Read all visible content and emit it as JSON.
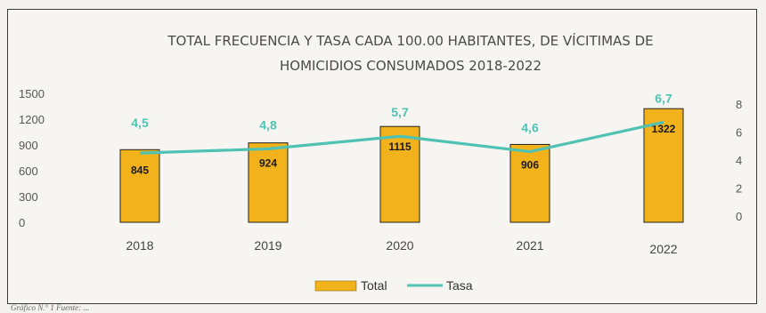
{
  "chart_data": {
    "type": "bar",
    "title_lines": [
      "TOTAL FRECUENCIA Y TASA CADA 100.00 HABITANTES, DE VÍCITIMAS DE",
      "HOMICIDIOS CONSUMADOS 2018-2022"
    ],
    "categories": [
      "2018",
      "2019",
      "2020",
      "2021",
      "2022"
    ],
    "series": [
      {
        "name": "Total",
        "type": "bar",
        "axis": "left",
        "color": "#f2b21b",
        "values": [
          845,
          924,
          1115,
          906,
          1322
        ]
      },
      {
        "name": "Tasa",
        "type": "line",
        "axis": "right",
        "color": "#4fc2b3",
        "values": [
          4.5,
          4.8,
          5.7,
          4.6,
          6.7
        ],
        "labels": [
          "4,5",
          "4,8",
          "5,7",
          "4,6",
          "6,7"
        ]
      }
    ],
    "y_left": {
      "ticks": [
        0,
        300,
        600,
        900,
        1200,
        1500
      ],
      "ylim": [
        0,
        1500
      ]
    },
    "y_right": {
      "ticks": [
        0,
        2,
        4,
        6,
        8
      ],
      "ylim": [
        0,
        10
      ]
    },
    "legend": {
      "position": "bottom",
      "items": [
        "Total",
        "Tasa"
      ]
    },
    "grid": false
  },
  "footer": "Gráfico N.° 1 Fuente: ..."
}
